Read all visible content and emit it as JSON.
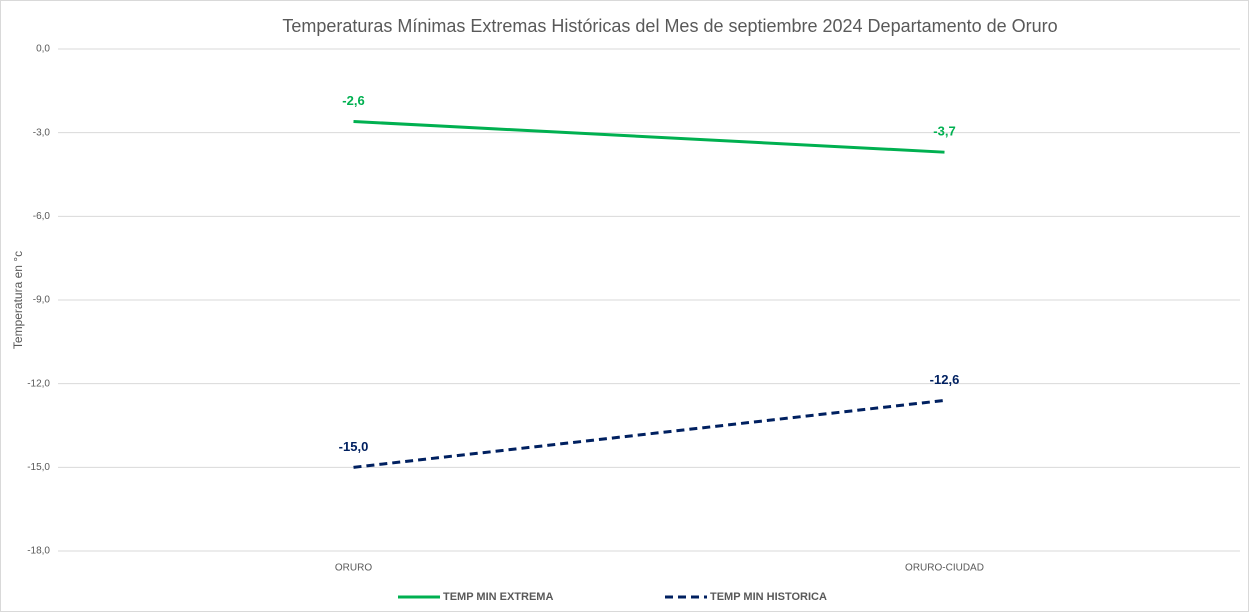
{
  "chart_data": {
    "type": "line",
    "title": "Temperaturas Mínimas Extremas Históricas del Mes de septiembre 2024  Departamento de Oruro",
    "y_label": "Temperatura en °c",
    "categories": [
      "ORURO",
      "ORURO-CIUDAD"
    ],
    "series": [
      {
        "name": "TEMP MIN EXTREMA",
        "color": "#00b050",
        "dash": false,
        "values": [
          -2.6,
          -3.7
        ],
        "value_labels": [
          "-2,6",
          "-3,7"
        ]
      },
      {
        "name": "TEMP MIN HISTORICA",
        "color": "#002060",
        "dash": true,
        "values": [
          -15.0,
          -12.6
        ],
        "value_labels": [
          "-15,0",
          "-12,6"
        ]
      }
    ],
    "ylim": [
      -18,
      0
    ],
    "yticks": [
      {
        "value": 0,
        "label": "0,0"
      },
      {
        "value": -3,
        "label": "-3,0"
      },
      {
        "value": -6,
        "label": "-6,0"
      },
      {
        "value": -9,
        "label": "-9,0"
      },
      {
        "value": -12,
        "label": "-12,0"
      },
      {
        "value": -15,
        "label": "-15,0"
      },
      {
        "value": -18,
        "label": "-18,0"
      }
    ],
    "grid": true,
    "legend": "bottom"
  }
}
